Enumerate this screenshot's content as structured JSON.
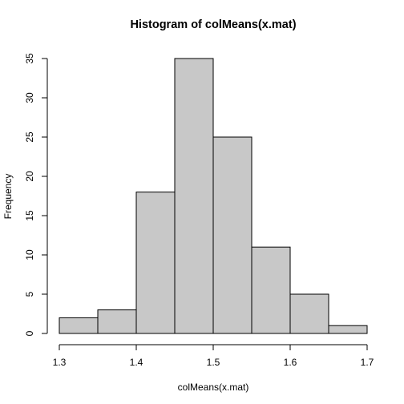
{
  "chart_data": {
    "type": "bar",
    "title": "Histogram of colMeans(x.mat)",
    "xlabel": "colMeans(x.mat)",
    "ylabel": "Frequency",
    "bins": [
      {
        "start": 1.3,
        "end": 1.35,
        "count": 2
      },
      {
        "start": 1.35,
        "end": 1.4,
        "count": 3
      },
      {
        "start": 1.4,
        "end": 1.45,
        "count": 18
      },
      {
        "start": 1.45,
        "end": 1.5,
        "count": 35
      },
      {
        "start": 1.5,
        "end": 1.55,
        "count": 25
      },
      {
        "start": 1.55,
        "end": 1.6,
        "count": 11
      },
      {
        "start": 1.6,
        "end": 1.65,
        "count": 5
      },
      {
        "start": 1.65,
        "end": 1.7,
        "count": 1
      }
    ],
    "xlim": [
      1.3,
      1.7
    ],
    "ylim": [
      0,
      35
    ],
    "x_ticks": [
      "1.3",
      "1.4",
      "1.5",
      "1.6",
      "1.7"
    ],
    "y_ticks": [
      "0",
      "5",
      "10",
      "15",
      "20",
      "25",
      "30",
      "35"
    ],
    "bar_fill": "#c8c8c8",
    "bar_stroke": "#000000",
    "grid": false
  }
}
